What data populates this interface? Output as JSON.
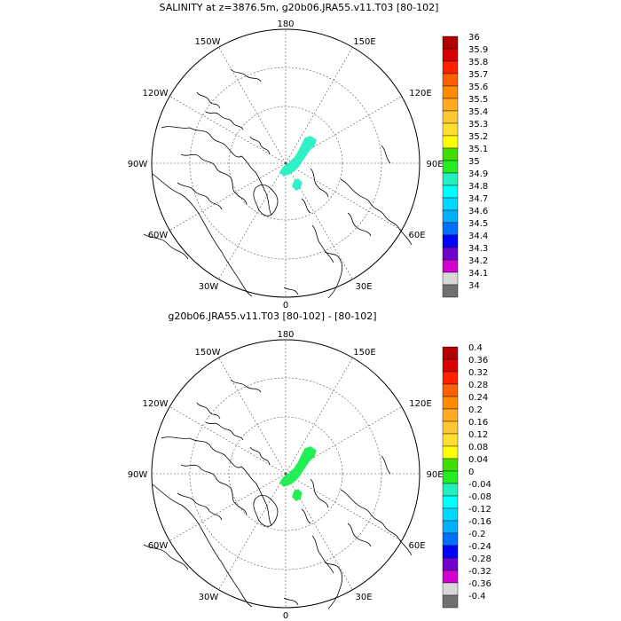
{
  "panels": [
    {
      "id": "top",
      "title": "SALINITY at z=3876.5m, g20b06.JRA55.v11.T03 [80-102]",
      "lon_labels": {
        "n": "180",
        "nne": "150E",
        "ene": "120E",
        "e": "90E",
        "ese": "60E",
        "sse": "30E",
        "s": "0",
        "ssw": "30W",
        "wsw": "60W",
        "w": "90W",
        "wnw": "120W",
        "nnw": "150W"
      },
      "colorbar": {
        "labels": [
          "36",
          "35.9",
          "35.8",
          "35.7",
          "35.6",
          "35.5",
          "35.4",
          "35.3",
          "35.2",
          "35.1",
          "35",
          "34.9",
          "34.8",
          "34.7",
          "34.6",
          "34.5",
          "34.4",
          "34.3",
          "34.2",
          "34.1",
          "34"
        ]
      }
    },
    {
      "id": "bottom",
      "title": "g20b06.JRA55.v11.T03 [80-102] - [80-102]",
      "lon_labels": {
        "n": "180",
        "nne": "150E",
        "ene": "120E",
        "e": "90E",
        "ese": "60E",
        "sse": "30E",
        "s": "0",
        "ssw": "30W",
        "wsw": "60W",
        "w": "90W",
        "wnw": "120W",
        "nnw": "150W"
      },
      "colorbar": {
        "labels": [
          "0.4",
          "0.36",
          "0.32",
          "0.28",
          "0.24",
          "0.2",
          "0.16",
          "0.12",
          "0.08",
          "0.04",
          "0",
          "-0.04",
          "-0.08",
          "-0.12",
          "-0.16",
          "-0.2",
          "-0.24",
          "-0.28",
          "-0.32",
          "-0.36",
          "-0.4"
        ]
      }
    }
  ],
  "colors": [
    "#b00000",
    "#d80000",
    "#ff2000",
    "#ff6000",
    "#ff8c00",
    "#ffaa20",
    "#ffc830",
    "#ffe030",
    "#ffff00",
    "#44dd00",
    "#22ee22",
    "#22f0c0",
    "#00ffff",
    "#00d8ff",
    "#00b0ff",
    "#0070ff",
    "#0000ff",
    "#7000d0",
    "#d000d0",
    "#d8d8d8",
    "#707070"
  ],
  "top_blob_color": "#30f0c8",
  "bottom_blob_color": "#22ee55",
  "land_outline_color": "#000000",
  "grid_color": "#555555"
}
